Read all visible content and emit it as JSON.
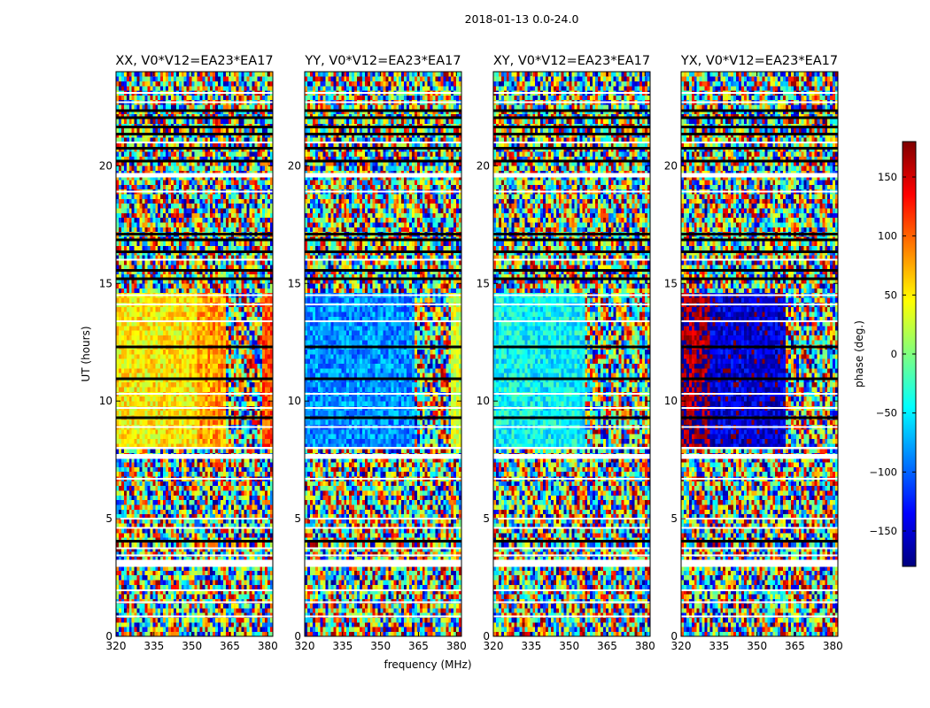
{
  "figure": {
    "suptitle": "2018-01-13 0.0-24.0"
  },
  "colors": {
    "jet": [
      "#00007f",
      "#0000ff",
      "#007fff",
      "#00ffff",
      "#7fff7f",
      "#ffff00",
      "#ff7f00",
      "#ff0000",
      "#7f0000"
    ],
    "blank_row": "#ffffff",
    "dark_row": "#000000"
  },
  "chart_data": [
    {
      "type": "heatmap",
      "title": "XX, V0*V12=EA23*EA17",
      "xlabel": "",
      "ylabel": "UT (hours)",
      "xlim": [
        320,
        382
      ],
      "ylim": [
        0,
        24
      ],
      "xticks": [
        "320",
        "335",
        "350",
        "365",
        "380"
      ],
      "yticks": [
        "0",
        "5",
        "10",
        "15",
        "20"
      ],
      "z_label": "phase (deg.)",
      "z_range": [
        -180,
        180
      ],
      "mean_phase_by_band": [
        {
          "ut_range": [
            8.0,
            14.6
          ],
          "freq_range": [
            320,
            352
          ],
          "phase_mean": 50
        },
        {
          "ut_range": [
            8.0,
            14.6
          ],
          "freq_range": [
            352,
            363
          ],
          "phase_mean": 80
        },
        {
          "ut_range": [
            8.0,
            14.6
          ],
          "freq_range": [
            378,
            382
          ],
          "phase_mean": 110
        }
      ]
    },
    {
      "type": "heatmap",
      "title": "YY, V0*V12=EA23*EA17",
      "xlabel": "frequency (MHz)",
      "ylabel": "",
      "xlim": [
        320,
        382
      ],
      "ylim": [
        0,
        24
      ],
      "xticks": [
        "320",
        "335",
        "350",
        "365",
        "380"
      ],
      "yticks": [
        "0",
        "5",
        "10",
        "15",
        "20"
      ],
      "z_label": "phase (deg.)",
      "z_range": [
        -180,
        180
      ],
      "mean_phase_by_band": [
        {
          "ut_range": [
            8.0,
            14.6
          ],
          "freq_range": [
            320,
            363
          ],
          "phase_mean": -85
        },
        {
          "ut_range": [
            8.0,
            14.6
          ],
          "freq_range": [
            378,
            382
          ],
          "phase_mean": 30
        }
      ]
    },
    {
      "type": "heatmap",
      "title": "XY, V0*V12=EA23*EA17",
      "xlabel": "",
      "ylabel": "",
      "xlim": [
        320,
        382
      ],
      "ylim": [
        0,
        24
      ],
      "xticks": [
        "320",
        "335",
        "350",
        "365",
        "380"
      ],
      "yticks": [
        "0",
        "5",
        "10",
        "15",
        "20"
      ],
      "z_label": "phase (deg.)",
      "z_range": [
        -180,
        180
      ],
      "mean_phase_by_band": [
        {
          "ut_range": [
            8.0,
            14.6
          ],
          "freq_range": [
            320,
            356
          ],
          "phase_mean": -45
        }
      ]
    },
    {
      "type": "heatmap",
      "title": "YX, V0*V12=EA23*EA17",
      "xlabel": "",
      "ylabel": "",
      "xlim": [
        320,
        382
      ],
      "ylim": [
        0,
        24
      ],
      "xticks": [
        "320",
        "335",
        "350",
        "365",
        "380"
      ],
      "yticks": [
        "0",
        "5",
        "10",
        "15",
        "20"
      ],
      "z_label": "phase (deg.)",
      "z_range": [
        -180,
        180
      ],
      "mean_phase_by_band": [
        {
          "ut_range": [
            8.0,
            14.6
          ],
          "freq_range": [
            320,
            331
          ],
          "phase_mean": 170
        },
        {
          "ut_range": [
            8.0,
            14.6
          ],
          "freq_range": [
            331,
            361
          ],
          "phase_mean": -150
        }
      ]
    },
    {
      "type": "colorbar",
      "label": "phase (deg.)",
      "range": [
        -180,
        180
      ],
      "ticks": [
        "150",
        "100",
        "50",
        "0",
        "−50",
        "−100",
        "−150"
      ],
      "tick_values": [
        150,
        100,
        50,
        0,
        -50,
        -100,
        -150
      ]
    }
  ]
}
